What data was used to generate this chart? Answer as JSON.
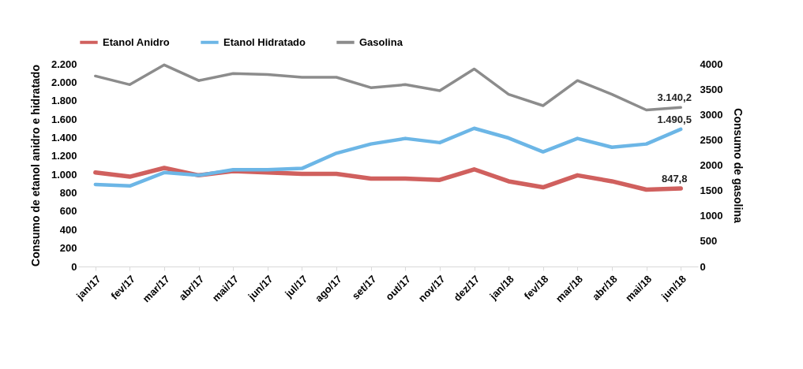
{
  "chart_data": {
    "type": "line",
    "categories": [
      "jan/17",
      "fev/17",
      "mar/17",
      "abr/17",
      "mai/17",
      "jun/17",
      "jul/17",
      "ago/17",
      "set/17",
      "out/17",
      "nov/17",
      "dez/17",
      "jan/18",
      "fev/18",
      "mar/18",
      "abr/18",
      "mai/18",
      "jun/18"
    ],
    "series": [
      {
        "name": "Etanol Anidro",
        "color": "#d0605e",
        "values": [
          1020,
          975,
          1070,
          990,
          1035,
          1020,
          1005,
          1005,
          955,
          955,
          940,
          1055,
          925,
          860,
          990,
          925,
          835,
          847.8
        ],
        "value_labels": [
          null,
          null,
          null,
          null,
          null,
          null,
          null,
          null,
          null,
          null,
          null,
          null,
          null,
          null,
          null,
          null,
          null,
          "847,8"
        ]
      },
      {
        "name": "Etanol Hidratado",
        "color": "#6cb6e6",
        "values": [
          890,
          875,
          1020,
          990,
          1050,
          1050,
          1065,
          1230,
          1330,
          1390,
          1345,
          1500,
          1395,
          1245,
          1390,
          1295,
          1330,
          1490.5
        ],
        "value_labels": [
          null,
          null,
          null,
          null,
          null,
          null,
          null,
          null,
          null,
          null,
          null,
          null,
          null,
          null,
          null,
          null,
          null,
          "1.490,5"
        ]
      },
      {
        "name": "Gasolina",
        "color": "#8c8c8c",
        "axis": "y2",
        "values": [
          3760,
          3590,
          3980,
          3670,
          3810,
          3790,
          3735,
          3735,
          3530,
          3590,
          3470,
          3900,
          3400,
          3175,
          3670,
          3400,
          3090,
          3140.2
        ],
        "value_labels": [
          null,
          null,
          null,
          null,
          null,
          null,
          null,
          null,
          null,
          null,
          null,
          null,
          null,
          null,
          null,
          null,
          null,
          "3.140,2"
        ]
      }
    ],
    "ylabel": "Consumo de etanol anidro e hidratado",
    "y2label": "Consumo de gasolina",
    "ylim": [
      0,
      2200
    ],
    "yticks": [
      0,
      {
        "value": 200,
        "label": "200"
      },
      {
        "value": 400,
        "label": "400"
      },
      {
        "value": 600,
        "label": "600"
      },
      {
        "value": 800,
        "label": "800"
      },
      {
        "value": 1000,
        "label": "1.000"
      },
      {
        "value": 1200,
        "label": "1.200"
      },
      {
        "value": 1400,
        "label": "1.400"
      },
      {
        "value": 1600,
        "label": "1.600"
      },
      {
        "value": 1800,
        "label": "1.800"
      },
      {
        "value": 2000,
        "label": "2.000"
      },
      {
        "value": 2200,
        "label": "2.200"
      }
    ],
    "y2lim": [
      0,
      4000
    ],
    "y2ticks": [
      0,
      500,
      1000,
      1500,
      2000,
      2500,
      3000,
      3500,
      4000
    ],
    "legend": "top",
    "grid": false
  }
}
